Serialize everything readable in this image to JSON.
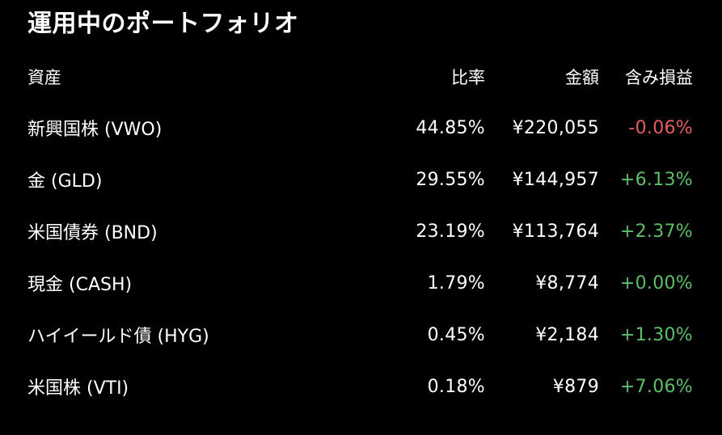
{
  "title": "運用中のポートフォリオ",
  "header": {
    "asset": "資産",
    "ratio": "比率",
    "amount": "金額",
    "gain": "含み損益"
  },
  "colors": {
    "background": "#000000",
    "text": "#ffffff",
    "positive": "#5fbe6a",
    "negative": "#e0605f"
  },
  "rows": [
    {
      "name": "新興国株 (VWO)",
      "ratio": "44.85%",
      "amount": "¥220,055",
      "gain": "-0.06%",
      "trend": "negative"
    },
    {
      "name": "金 (GLD)",
      "ratio": "29.55%",
      "amount": "¥144,957",
      "gain": "+6.13%",
      "trend": "positive"
    },
    {
      "name": "米国債券 (BND)",
      "ratio": "23.19%",
      "amount": "¥113,764",
      "gain": "+2.37%",
      "trend": "positive"
    },
    {
      "name": "現金 (CASH)",
      "ratio": "1.79%",
      "amount": "¥8,774",
      "gain": "+0.00%",
      "trend": "positive"
    },
    {
      "name": "ハイイールド債 (HYG)",
      "ratio": "0.45%",
      "amount": "¥2,184",
      "gain": "+1.30%",
      "trend": "positive"
    },
    {
      "name": "米国株 (VTI)",
      "ratio": "0.18%",
      "amount": "¥879",
      "gain": "+7.06%",
      "trend": "positive"
    }
  ]
}
